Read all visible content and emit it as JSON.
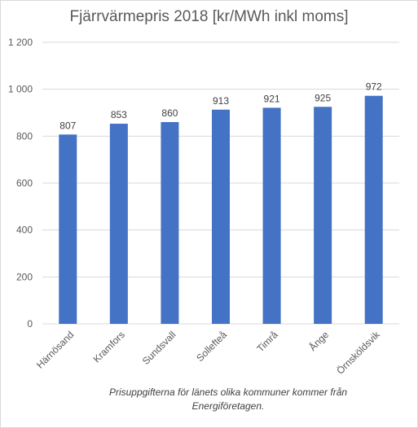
{
  "chart_data": {
    "type": "bar",
    "title": "Fjärrvärmepris 2018 [kr/MWh inkl moms]",
    "categories": [
      "Härnösand",
      "Kramfors",
      "Sundsvall",
      "Sollefteå",
      "Timrå",
      "Ånge",
      "Örnsköldsvik"
    ],
    "values": [
      807,
      853,
      860,
      913,
      921,
      925,
      972
    ],
    "value_labels": [
      "807",
      "853",
      "860",
      "913",
      "921",
      "925",
      "972"
    ],
    "ylim": [
      0,
      1200
    ],
    "yticks": [
      0,
      200,
      400,
      600,
      800,
      1000,
      1200
    ],
    "ytick_labels": [
      "0",
      "200",
      "400",
      "600",
      "800",
      "1 000",
      "1 200"
    ],
    "grid": true,
    "bar_color": "#4472C4",
    "grid_color": "#D9D9D9"
  },
  "note": {
    "line1": "Prisuppgifterna  för länets olika kommuner kommer  från",
    "line2": "Energiföretagen."
  }
}
